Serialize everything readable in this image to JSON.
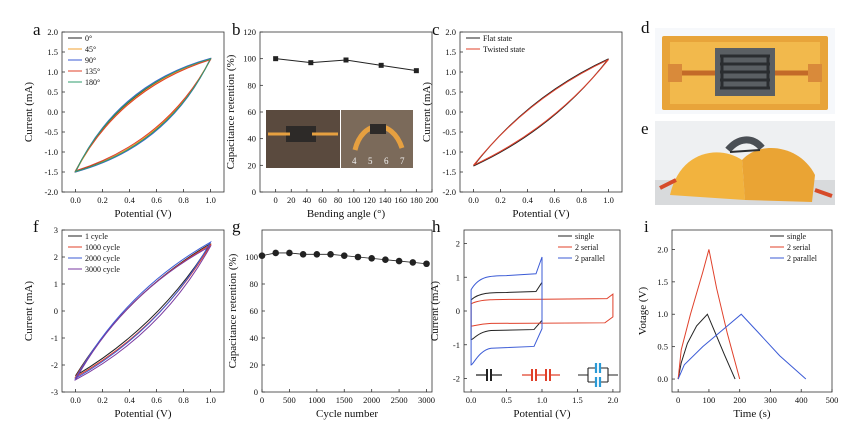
{
  "figure": {
    "description_free": true
  },
  "photo_labels": {
    "d": "d",
    "e": "e"
  },
  "colors": {
    "black": "#222222",
    "red": "#e0402a",
    "blue": "#3b5bd6",
    "purple": "#7a3aa0",
    "green": "#2f9e6e",
    "orange": "#f0a030"
  },
  "chart_data": [
    {
      "panel": "a",
      "type": "line",
      "xlabel": "Potential (V)",
      "ylabel": "Current  (mA)",
      "xlim": [
        -0.1,
        1.1
      ],
      "ylim": [
        -2.0,
        2.0
      ],
      "xticks": [
        "0.0",
        "0.2",
        "0.4",
        "0.6",
        "0.8",
        "1.0"
      ],
      "yticks": [
        "-2.0",
        "-1.5",
        "-1.0",
        "-0.5",
        "0.0",
        "0.5",
        "1.0",
        "1.5",
        "2.0"
      ],
      "legend": "top-left",
      "series": [
        {
          "name": "0°",
          "color": "#222222",
          "shape": "lens",
          "v0": 0.0,
          "v1": 1.0,
          "i0": -1.48,
          "i1": 1.32,
          "bulge": 0.62
        },
        {
          "name": "45°",
          "color": "#f0a030",
          "shape": "lens",
          "v0": 0.0,
          "v1": 1.0,
          "i0": -1.5,
          "i1": 1.33,
          "bulge": 0.6
        },
        {
          "name": "90°",
          "color": "#3b5bd6",
          "shape": "lens",
          "v0": 0.0,
          "v1": 1.0,
          "i0": -1.5,
          "i1": 1.34,
          "bulge": 0.66
        },
        {
          "name": "135°",
          "color": "#e0402a",
          "shape": "lens",
          "v0": 0.0,
          "v1": 1.0,
          "i0": -1.47,
          "i1": 1.31,
          "bulge": 0.58
        },
        {
          "name": "180°",
          "color": "#2f9e6e",
          "shape": "lens",
          "v0": 0.0,
          "v1": 1.0,
          "i0": -1.49,
          "i1": 1.33,
          "bulge": 0.64
        }
      ]
    },
    {
      "panel": "b",
      "type": "line",
      "xlabel": "Bending angle (°)",
      "ylabel": "Capacitance retention (%)",
      "xlim": [
        -20,
        200
      ],
      "ylim": [
        0,
        120
      ],
      "xticks": [
        "0",
        "20",
        "40",
        "60",
        "80",
        "100",
        "120",
        "140",
        "160",
        "180",
        "200"
      ],
      "yticks": [
        "0",
        "20",
        "40",
        "60",
        "80",
        "100",
        "120"
      ],
      "inset_numbers": [
        "4",
        "5",
        "6",
        "7"
      ],
      "series": [
        {
          "name": "retention",
          "color": "#222222",
          "x": [
            0,
            45,
            90,
            135,
            180
          ],
          "y": [
            100,
            97,
            99,
            95,
            91
          ],
          "marker": "square"
        }
      ]
    },
    {
      "panel": "c",
      "type": "line",
      "xlabel": "Potential (V)",
      "ylabel": "Current  (mA)",
      "xlim": [
        -0.1,
        1.1
      ],
      "ylim": [
        -2.0,
        2.0
      ],
      "xticks": [
        "0.0",
        "0.2",
        "0.4",
        "0.6",
        "0.8",
        "1.0"
      ],
      "yticks": [
        "-2.0",
        "-1.5",
        "-1.0",
        "-0.5",
        "0.0",
        "0.5",
        "1.0",
        "1.5",
        "2.0"
      ],
      "legend": "top-left",
      "series": [
        {
          "name": "Flat state",
          "color": "#222222",
          "shape": "lens",
          "v0": 0.0,
          "v1": 1.0,
          "i0": -1.35,
          "i1": 1.33,
          "bulge": 0.35
        },
        {
          "name": "Twisted state",
          "color": "#e0402a",
          "shape": "lens",
          "v0": 0.0,
          "v1": 1.0,
          "i0": -1.33,
          "i1": 1.31,
          "bulge": 0.33
        }
      ]
    },
    {
      "panel": "f",
      "type": "line",
      "xlabel": "Potential (V)",
      "ylabel": "Current  (mA)",
      "xlim": [
        -0.1,
        1.1
      ],
      "ylim": [
        -3,
        3
      ],
      "xticks": [
        "0.0",
        "0.2",
        "0.4",
        "0.6",
        "0.8",
        "1.0"
      ],
      "yticks": [
        "-3",
        "-2",
        "-1",
        "0",
        "1",
        "2",
        "3"
      ],
      "legend": "top-left",
      "series": [
        {
          "name": "1 cycle",
          "color": "#222222",
          "shape": "lens",
          "v0": 0.0,
          "v1": 1.0,
          "i0": -2.4,
          "i1": 2.5,
          "bulge": 0.35
        },
        {
          "name": "1000 cycle",
          "color": "#e0402a",
          "shape": "lens",
          "v0": 0.0,
          "v1": 1.0,
          "i0": -2.45,
          "i1": 2.45,
          "bulge": 0.38
        },
        {
          "name": "2000 cycle",
          "color": "#3b5bd6",
          "shape": "lens",
          "v0": 0.0,
          "v1": 1.0,
          "i0": -2.5,
          "i1": 2.55,
          "bulge": 0.4
        },
        {
          "name": "3000 cycle",
          "color": "#7a3aa0",
          "shape": "lens",
          "v0": 0.0,
          "v1": 1.0,
          "i0": -2.55,
          "i1": 2.4,
          "bulge": 0.42
        }
      ]
    },
    {
      "panel": "g",
      "type": "scatter",
      "xlabel": "Cycle number",
      "ylabel": "Capacitance retention (%)",
      "xlim": [
        0,
        3100
      ],
      "ylim": [
        0,
        120
      ],
      "xticks": [
        "0",
        "500",
        "1000",
        "1500",
        "2000",
        "2500",
        "3000"
      ],
      "yticks": [
        "0",
        "20",
        "40",
        "60",
        "80",
        "100"
      ],
      "series": [
        {
          "name": "retention",
          "color": "#222222",
          "marker": "circle",
          "x": [
            0,
            250,
            500,
            750,
            1000,
            1250,
            1500,
            1750,
            2000,
            2250,
            2500,
            2750,
            3000
          ],
          "y": [
            101,
            103,
            103,
            102,
            102,
            102,
            101,
            100,
            99,
            98,
            97,
            96,
            95
          ]
        }
      ]
    },
    {
      "panel": "h",
      "type": "line",
      "xlabel": "Potential (V)",
      "ylabel": "Current  (mA)",
      "xlim": [
        -0.1,
        2.1
      ],
      "ylim": [
        -2.4,
        2.4
      ],
      "xticks": [
        "0.0",
        "0.5",
        "1.0",
        "1.5",
        "2.0"
      ],
      "yticks": [
        "-2",
        "-1",
        "0",
        "1",
        "2"
      ],
      "legend": "top-right",
      "series": [
        {
          "name": "single",
          "color": "#222222",
          "shape": "box",
          "v0": 0.0,
          "v1": 1.0,
          "i0": -0.85,
          "i1": 0.85,
          "top": 0.55,
          "bottom": -0.55
        },
        {
          "name": "2 serial",
          "color": "#e0402a",
          "shape": "box",
          "v0": 0.0,
          "v1": 2.0,
          "i0": -0.45,
          "i1": 0.5,
          "top": 0.35,
          "bottom": -0.35
        },
        {
          "name": "2 parallel",
          "color": "#3b5bd6",
          "shape": "box",
          "v0": 0.0,
          "v1": 1.0,
          "i0": -1.6,
          "i1": 1.6,
          "top": 1.05,
          "bottom": -1.05
        }
      ]
    },
    {
      "panel": "i",
      "type": "line",
      "xlabel": "Time (s)",
      "ylabel": "Votage (V)",
      "xlim": [
        -20,
        500
      ],
      "ylim": [
        -0.2,
        2.3
      ],
      "xticks": [
        "0",
        "100",
        "200",
        "300",
        "400",
        "500"
      ],
      "yticks": [
        "0.0",
        "0.5",
        "1.0",
        "1.5",
        "2.0"
      ],
      "legend": "top-right",
      "series": [
        {
          "name": "single",
          "color": "#222222",
          "x": [
            0,
            10,
            30,
            60,
            95,
            120,
            150,
            185
          ],
          "y": [
            0.0,
            0.25,
            0.55,
            0.82,
            1.0,
            0.72,
            0.38,
            0.0
          ]
        },
        {
          "name": "2 serial",
          "color": "#e0402a",
          "x": [
            0,
            10,
            40,
            80,
            100,
            125,
            160,
            200
          ],
          "y": [
            0.0,
            0.45,
            1.0,
            1.65,
            2.0,
            1.4,
            0.7,
            0.0
          ]
        },
        {
          "name": "2 parallel",
          "color": "#3b5bd6",
          "x": [
            0,
            20,
            80,
            150,
            205,
            260,
            330,
            415
          ],
          "y": [
            0.0,
            0.22,
            0.5,
            0.78,
            1.0,
            0.72,
            0.36,
            0.0
          ]
        }
      ]
    }
  ]
}
